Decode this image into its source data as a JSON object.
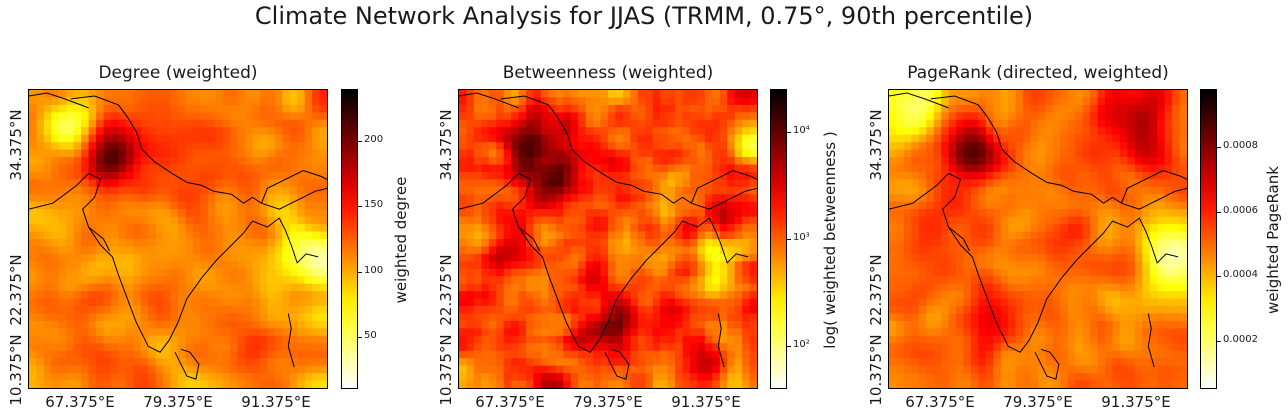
{
  "suptitle": "Climate Network Analysis for JJAS (TRMM, 0.75°, 90th percentile)",
  "panels": [
    {
      "title": "Degree (weighted)",
      "colorbar_label": "weighted degree",
      "colorbar_ticks": [
        "50",
        "100",
        "150",
        "200"
      ],
      "colorbar_tick_values": [
        50,
        100,
        150,
        200
      ],
      "colorbar_range": [
        10,
        240
      ]
    },
    {
      "title": "Betweenness (weighted)",
      "colorbar_label": "log( weighted betweenness )",
      "colorbar_ticks": [
        "10²",
        "10³",
        "10⁴"
      ],
      "colorbar_tick_values": [
        100,
        1000,
        10000
      ],
      "colorbar_range": [
        40,
        25000
      ],
      "colorbar_scale": "log"
    },
    {
      "title": "PageRank (directed, weighted)",
      "colorbar_label": "weighted PageRank",
      "colorbar_ticks": [
        "0.0002",
        "0.0004",
        "0.0006",
        "0.0008"
      ],
      "colorbar_tick_values": [
        0.0002,
        0.0004,
        0.0006,
        0.0008
      ],
      "colorbar_range": [
        5e-05,
        0.00098
      ]
    }
  ],
  "axes": {
    "ylabels": [
      "34.375°N",
      "22.375°N",
      "10.375°N"
    ],
    "xlabels": [
      "67.375°E",
      "79.375°E",
      "91.375°E"
    ]
  },
  "colormap": "hot_r"
}
